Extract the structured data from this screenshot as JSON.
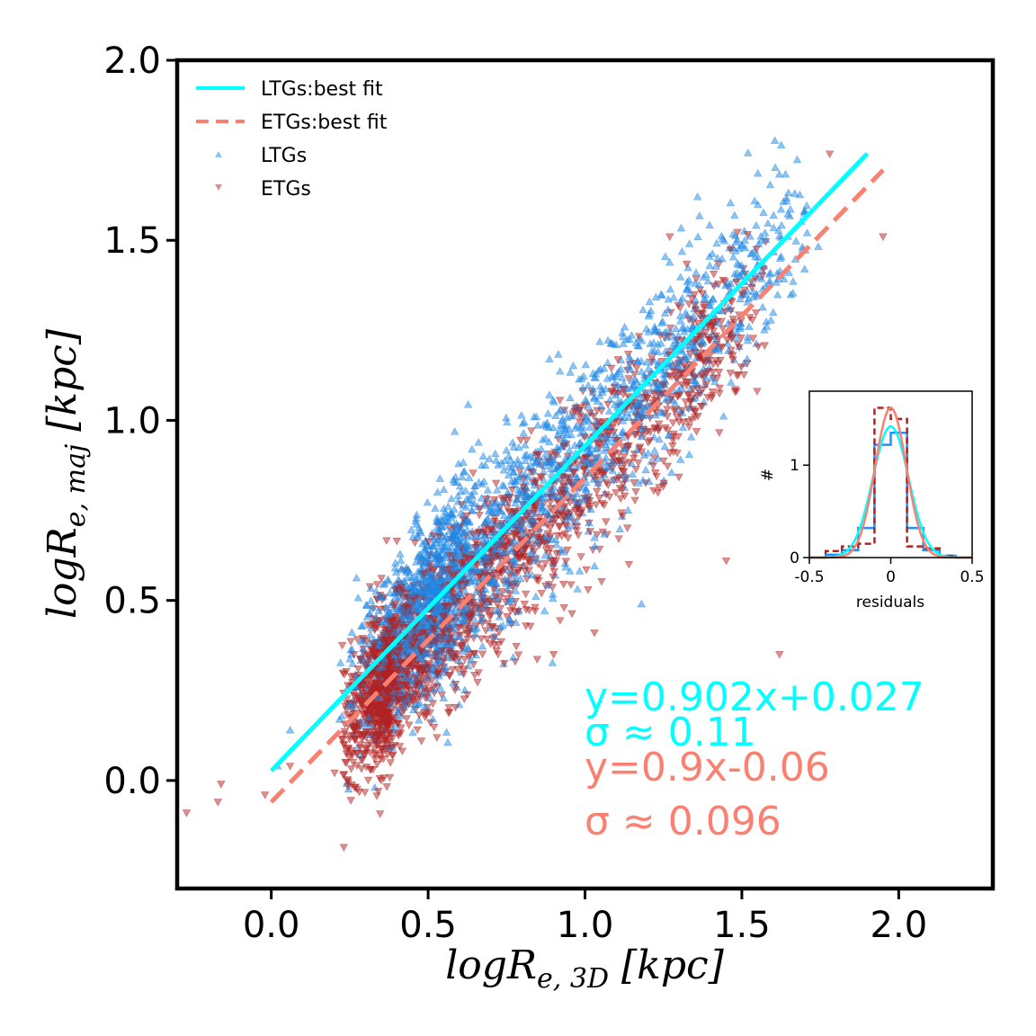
{
  "colors": {
    "ltg_points": "#1e88e5",
    "etg_points": "#b22222",
    "ltg_fit": "#00ffff",
    "etg_fit": "#fa8072",
    "ltg_hist": "#1e90ff",
    "etg_hist": "#b22222"
  },
  "chart_data": [
    {
      "type": "scatter",
      "title": "",
      "xlabel": "logR_{e,3D} [kpc]",
      "ylabel": "logR_{e,maj} [kpc]",
      "xlim": [
        -0.3,
        2.3
      ],
      "ylim": [
        -0.3,
        2.0
      ],
      "xticks": [
        0.0,
        0.5,
        1.0,
        1.5,
        2.0
      ],
      "yticks": [
        0.0,
        0.5,
        1.0,
        1.5,
        2.0
      ],
      "xtick_labels": [
        "0.0",
        "0.5",
        "1.0",
        "1.5",
        "2.0"
      ],
      "ytick_labels": [
        "0.0",
        "0.5",
        "1.0",
        "1.5",
        "2.0"
      ],
      "legend": {
        "placement": "top-left",
        "entries": [
          "LTGs:best fit",
          "ETGs:best fit",
          "LTGs",
          "ETGs"
        ]
      },
      "series": [
        {
          "name": "LTGs",
          "marker": "triangle-up",
          "fit": {
            "slope": 0.902,
            "intercept": 0.027,
            "x_range": [
              0.0,
              1.9
            ]
          },
          "cloud": {
            "x_min": 0.2,
            "x_max": 1.75,
            "x_mode": 0.55,
            "scatter": 0.11,
            "count": 2200
          },
          "outliers": [
            [
              0.06,
              0.14
            ],
            [
              0.33,
              -0.02
            ],
            [
              1.18,
              0.49
            ],
            [
              1.55,
              1.43
            ],
            [
              1.65,
              1.41
            ],
            [
              1.7,
              1.42
            ],
            [
              1.5,
              1.35
            ],
            [
              1.6,
              1.3
            ],
            [
              0.02,
              0.04
            ]
          ]
        },
        {
          "name": "ETGs",
          "marker": "triangle-down",
          "fit": {
            "slope": 0.9,
            "intercept": -0.06,
            "x_range": [
              0.0,
              1.95
            ]
          },
          "cloud": {
            "x_min": 0.2,
            "x_max": 1.6,
            "x_mode": 0.38,
            "scatter": 0.096,
            "count": 2200
          },
          "outliers": [
            [
              -0.27,
              -0.09
            ],
            [
              -0.17,
              -0.06
            ],
            [
              -0.16,
              -0.01
            ],
            [
              -0.02,
              -0.04
            ],
            [
              0.06,
              0.04
            ],
            [
              1.78,
              1.74
            ],
            [
              1.27,
              1.51
            ],
            [
              1.95,
              1.51
            ],
            [
              1.62,
              0.35
            ],
            [
              1.45,
              0.61
            ],
            [
              1.03,
              0.41
            ],
            [
              1.01,
              0.53
            ],
            [
              1.14,
              0.6
            ],
            [
              0.9,
              0.35
            ]
          ]
        }
      ],
      "annotations": [
        {
          "text": "y=0.902x+0.027",
          "color_key": "ltg_fit"
        },
        {
          "text": "σ ≈ 0.11",
          "color_key": "ltg_fit"
        },
        {
          "text": "y=0.9x-0.06",
          "color_key": "etg_fit"
        },
        {
          "text": "σ ≈ 0.096",
          "color_key": "etg_fit"
        }
      ]
    },
    {
      "type": "histogram",
      "title": "",
      "xlabel": "residuals",
      "ylabel": "#",
      "xlim": [
        -0.5,
        0.5
      ],
      "ylim": [
        0,
        1.8
      ],
      "xticks": [
        -0.5,
        0,
        0.5
      ],
      "yticks": [
        0,
        1
      ],
      "xtick_labels": [
        "-0.5",
        "0",
        "0.5"
      ],
      "ytick_labels": [
        "0",
        "1"
      ],
      "bin_edges": [
        -0.5,
        -0.4,
        -0.3,
        -0.2,
        -0.1,
        0.0,
        0.1,
        0.2,
        0.3,
        0.4,
        0.5
      ],
      "series": [
        {
          "name": "LTGs",
          "style": "step-solid",
          "values": [
            0.0,
            0.03,
            0.08,
            0.32,
            1.22,
            1.35,
            0.32,
            0.08,
            0.02,
            0.0
          ]
        },
        {
          "name": "ETGs",
          "style": "step-dashed",
          "values": [
            0.0,
            0.07,
            0.12,
            0.15,
            1.62,
            1.5,
            0.12,
            0.1,
            0.02,
            0.0
          ]
        }
      ],
      "gaussians": [
        {
          "name": "LTGs",
          "sigma": 0.11,
          "peak": 1.42
        },
        {
          "name": "ETGs",
          "sigma": 0.096,
          "peak": 1.62
        }
      ]
    }
  ]
}
